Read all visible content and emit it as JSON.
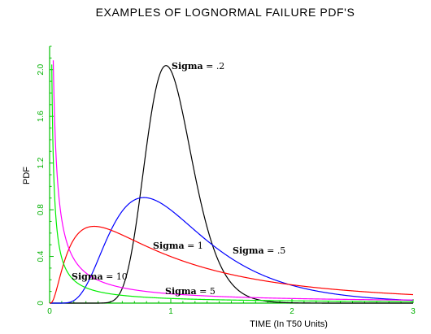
{
  "chart_data": {
    "type": "line",
    "title": "EXAMPLES OF LOGNORMAL FAILURE PDF'S",
    "xlabel": "TIME   (In T50 Units)",
    "ylabel": "PDF",
    "xlim": [
      0,
      3
    ],
    "ylim": [
      0,
      2.2
    ],
    "x_ticks": [
      {
        "value": 0,
        "label": "0"
      },
      {
        "value": 1,
        "label": "1"
      },
      {
        "value": 2,
        "label": "2"
      },
      {
        "value": 3,
        "label": "3"
      }
    ],
    "y_ticks": [
      {
        "value": 0,
        "label": "0"
      },
      {
        "value": 0.4,
        "label": "0.4"
      },
      {
        "value": 0.8,
        "label": "0.8"
      },
      {
        "value": 1.2,
        "label": "1.2"
      },
      {
        "value": 1.6,
        "label": "1.6"
      },
      {
        "value": 2.0,
        "label": "2.0"
      }
    ],
    "grid": false,
    "axis_color": "#00c000",
    "series": [
      {
        "sigma": 0.2,
        "color": "#000000"
      },
      {
        "sigma": 0.5,
        "color": "#0000ff"
      },
      {
        "sigma": 1,
        "color": "#ff0000"
      },
      {
        "sigma": 5,
        "color": "#ff00ff"
      },
      {
        "sigma": 10,
        "color": "#00ee00"
      }
    ],
    "annotations": [
      {
        "key": "sigma_02",
        "prefix": "Sigma",
        "sep": " = ",
        "value": ".2"
      },
      {
        "key": "sigma_05",
        "prefix": "Sigma",
        "sep": " = ",
        "value": ".5"
      },
      {
        "key": "sigma_1",
        "prefix": "Sigma",
        "sep": " = ",
        "value": "1"
      },
      {
        "key": "sigma_5",
        "prefix": "Sigma",
        "sep": " = ",
        "value": "5"
      },
      {
        "key": "sigma_10",
        "prefix": "Sigma",
        "sep": " = ",
        "value": "10"
      }
    ]
  }
}
